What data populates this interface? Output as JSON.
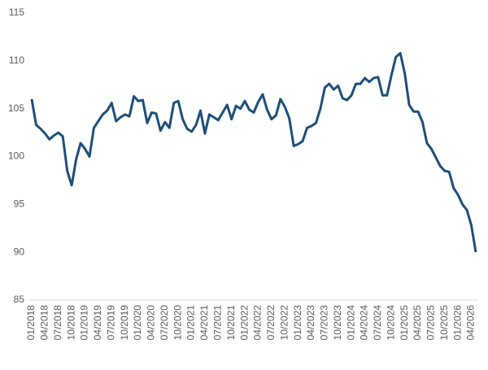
{
  "chart_data": {
    "type": "line",
    "categories": [
      "01/2018",
      null,
      null,
      "04/2018",
      null,
      null,
      "07/2018",
      null,
      null,
      "10/2018",
      null,
      null,
      "01/2019",
      null,
      null,
      "04/2019",
      null,
      null,
      "07/2019",
      null,
      null,
      "10/2019",
      null,
      null,
      "01/2020",
      null,
      null,
      "04/2020",
      null,
      null,
      "07/2020",
      null,
      null,
      "10/2020",
      null,
      null,
      "01/2021",
      null,
      null,
      "04/2021",
      null,
      null,
      "07/2021",
      null,
      null,
      "10/2021",
      null,
      null,
      "01/2022",
      null,
      null,
      "04/2022",
      null,
      null,
      "07/2022",
      null,
      null,
      "10/2022",
      null,
      null,
      "01/2023",
      null,
      null,
      "04/2023",
      null,
      null,
      "07/2023",
      null,
      null,
      "10/2023",
      null,
      null,
      "01/2024",
      null,
      null,
      "04/2024",
      null,
      null,
      "07/2024",
      null,
      null,
      "10/2024",
      null,
      null,
      "01/2025",
      null,
      null,
      "04/2025",
      null,
      null,
      "07/2025",
      null,
      null,
      "10/2025",
      null,
      null,
      "01/2026",
      null,
      null,
      "04/2026",
      null
    ],
    "values": [
      106.0,
      103.3,
      102.9,
      102.4,
      101.8,
      102.2,
      102.5,
      102.1,
      98.5,
      97.0,
      99.7,
      101.4,
      100.8,
      100.0,
      103.0,
      103.7,
      104.4,
      104.8,
      105.6,
      103.7,
      104.1,
      104.4,
      104.2,
      106.3,
      105.8,
      105.9,
      103.5,
      104.6,
      104.5,
      102.7,
      103.6,
      103.0,
      105.6,
      105.8,
      103.9,
      102.9,
      102.6,
      103.3,
      104.8,
      102.4,
      104.4,
      104.1,
      103.8,
      104.6,
      105.4,
      103.9,
      105.3,
      105.0,
      105.8,
      104.9,
      104.6,
      105.7,
      106.5,
      104.9,
      103.9,
      104.3,
      106.0,
      105.2,
      104.0,
      101.1,
      101.3,
      101.6,
      103.0,
      103.2,
      103.5,
      105.0,
      107.2,
      107.6,
      107.0,
      107.4,
      106.1,
      105.9,
      106.4,
      107.6,
      107.6,
      108.2,
      107.8,
      108.2,
      108.3,
      106.4,
      106.4,
      108.5,
      110.4,
      110.8,
      108.7,
      105.4,
      104.7,
      104.7,
      103.6,
      101.4,
      100.8,
      99.9,
      99.0,
      98.5,
      98.4,
      96.7,
      96.0,
      95.0,
      94.4,
      92.8,
      90.0
    ],
    "color": "#1f4e79",
    "ylim": [
      85,
      115
    ],
    "yticks": [
      85,
      90,
      95,
      100,
      105,
      110,
      115
    ],
    "grid": false
  }
}
